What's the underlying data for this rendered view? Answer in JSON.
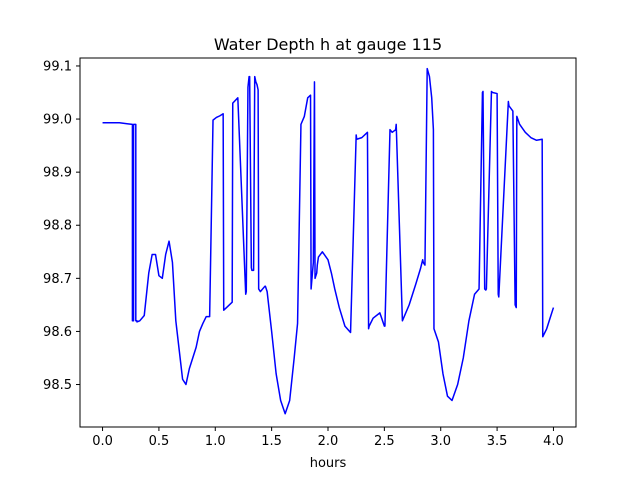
{
  "chart_data": {
    "type": "line",
    "title": "Water Depth h at gauge 115",
    "xlabel": "hours",
    "ylabel": "",
    "xlim": [
      -0.2,
      4.2
    ],
    "ylim": [
      98.42,
      99.115
    ],
    "xticks": [
      0.0,
      0.5,
      1.0,
      1.5,
      2.0,
      2.5,
      3.0,
      3.5,
      4.0
    ],
    "xtick_labels": [
      "0.0",
      "0.5",
      "1.0",
      "1.5",
      "2.0",
      "2.5",
      "3.0",
      "3.5",
      "4.0"
    ],
    "yticks": [
      98.5,
      98.6,
      98.7,
      98.8,
      98.9,
      99.0,
      99.1
    ],
    "ytick_labels": [
      "98.5",
      "98.6",
      "98.7",
      "98.8",
      "98.9",
      "99.0",
      "99.1"
    ],
    "grid": false,
    "legend": "none",
    "series": [
      {
        "color": "#0000ff",
        "x": [
          0.0,
          0.15,
          0.265,
          0.265,
          0.275,
          0.275,
          0.295,
          0.295,
          0.305,
          0.305,
          0.33,
          0.37,
          0.41,
          0.44,
          0.47,
          0.5,
          0.53,
          0.56,
          0.59,
          0.62,
          0.65,
          0.68,
          0.71,
          0.74,
          0.77,
          0.8,
          0.83,
          0.86,
          0.89,
          0.92,
          0.95,
          0.98,
          1.01,
          1.04,
          1.07,
          1.075,
          1.1,
          1.15,
          1.155,
          1.2,
          1.27,
          1.275,
          1.29,
          1.3,
          1.305,
          1.32,
          1.325,
          1.34,
          1.35,
          1.36,
          1.37,
          1.38,
          1.385,
          1.4,
          1.44,
          1.445,
          1.46,
          1.5,
          1.54,
          1.58,
          1.62,
          1.66,
          1.7,
          1.73,
          1.76,
          1.79,
          1.82,
          1.845,
          1.85,
          1.87,
          1.88,
          1.885,
          1.9,
          1.905,
          1.915,
          1.95,
          2.0,
          2.03,
          2.06,
          2.1,
          2.15,
          2.2,
          2.25,
          2.255,
          2.3,
          2.35,
          2.36,
          2.365,
          2.4,
          2.46,
          2.5,
          2.505,
          2.55,
          2.57,
          2.6,
          2.605,
          2.66,
          2.72,
          2.78,
          2.82,
          2.84,
          2.845,
          2.86,
          2.88,
          2.9,
          2.92,
          2.935,
          2.94,
          2.98,
          3.02,
          3.06,
          3.1,
          3.15,
          3.2,
          3.25,
          3.3,
          3.34,
          3.37,
          3.375,
          3.39,
          3.4,
          3.405,
          3.45,
          3.46,
          3.5,
          3.51,
          3.515,
          3.6,
          3.605,
          3.64,
          3.66,
          3.67,
          3.675,
          3.7,
          3.75,
          3.8,
          3.85,
          3.9,
          3.905,
          3.94,
          3.97,
          4.0
        ],
        "y": [
          98.993,
          98.993,
          98.99,
          98.62,
          98.62,
          98.99,
          98.99,
          98.62,
          98.62,
          98.618,
          98.62,
          98.63,
          98.71,
          98.745,
          98.745,
          98.705,
          98.7,
          98.745,
          98.77,
          98.73,
          98.62,
          98.565,
          98.51,
          98.5,
          98.53,
          98.55,
          98.57,
          98.6,
          98.615,
          98.628,
          98.628,
          98.998,
          99.003,
          99.006,
          99.01,
          98.64,
          98.645,
          98.655,
          99.03,
          99.04,
          98.67,
          98.675,
          99.06,
          99.08,
          99.08,
          98.72,
          98.715,
          98.715,
          99.08,
          99.07,
          99.065,
          99.055,
          98.68,
          98.675,
          98.685,
          98.685,
          98.675,
          98.6,
          98.52,
          98.47,
          98.445,
          98.47,
          98.55,
          98.615,
          98.99,
          99.005,
          99.04,
          99.045,
          98.68,
          98.73,
          99.07,
          98.7,
          98.71,
          98.725,
          98.74,
          98.75,
          98.735,
          98.71,
          98.68,
          98.645,
          98.61,
          98.598,
          98.97,
          98.962,
          98.965,
          98.975,
          98.605,
          98.61,
          98.625,
          98.635,
          98.61,
          98.61,
          98.98,
          98.975,
          98.98,
          98.99,
          98.62,
          98.65,
          98.69,
          98.718,
          98.735,
          98.73,
          98.725,
          99.095,
          99.08,
          99.04,
          98.98,
          98.605,
          98.58,
          98.52,
          98.478,
          98.47,
          98.5,
          98.55,
          98.62,
          98.67,
          98.68,
          99.05,
          99.052,
          98.68,
          98.678,
          98.68,
          99.052,
          99.05,
          99.048,
          98.67,
          98.665,
          99.033,
          99.025,
          99.015,
          98.65,
          98.645,
          99.005,
          98.99,
          98.975,
          98.965,
          98.96,
          98.962,
          98.59,
          98.605,
          98.625,
          98.645
        ]
      }
    ]
  }
}
